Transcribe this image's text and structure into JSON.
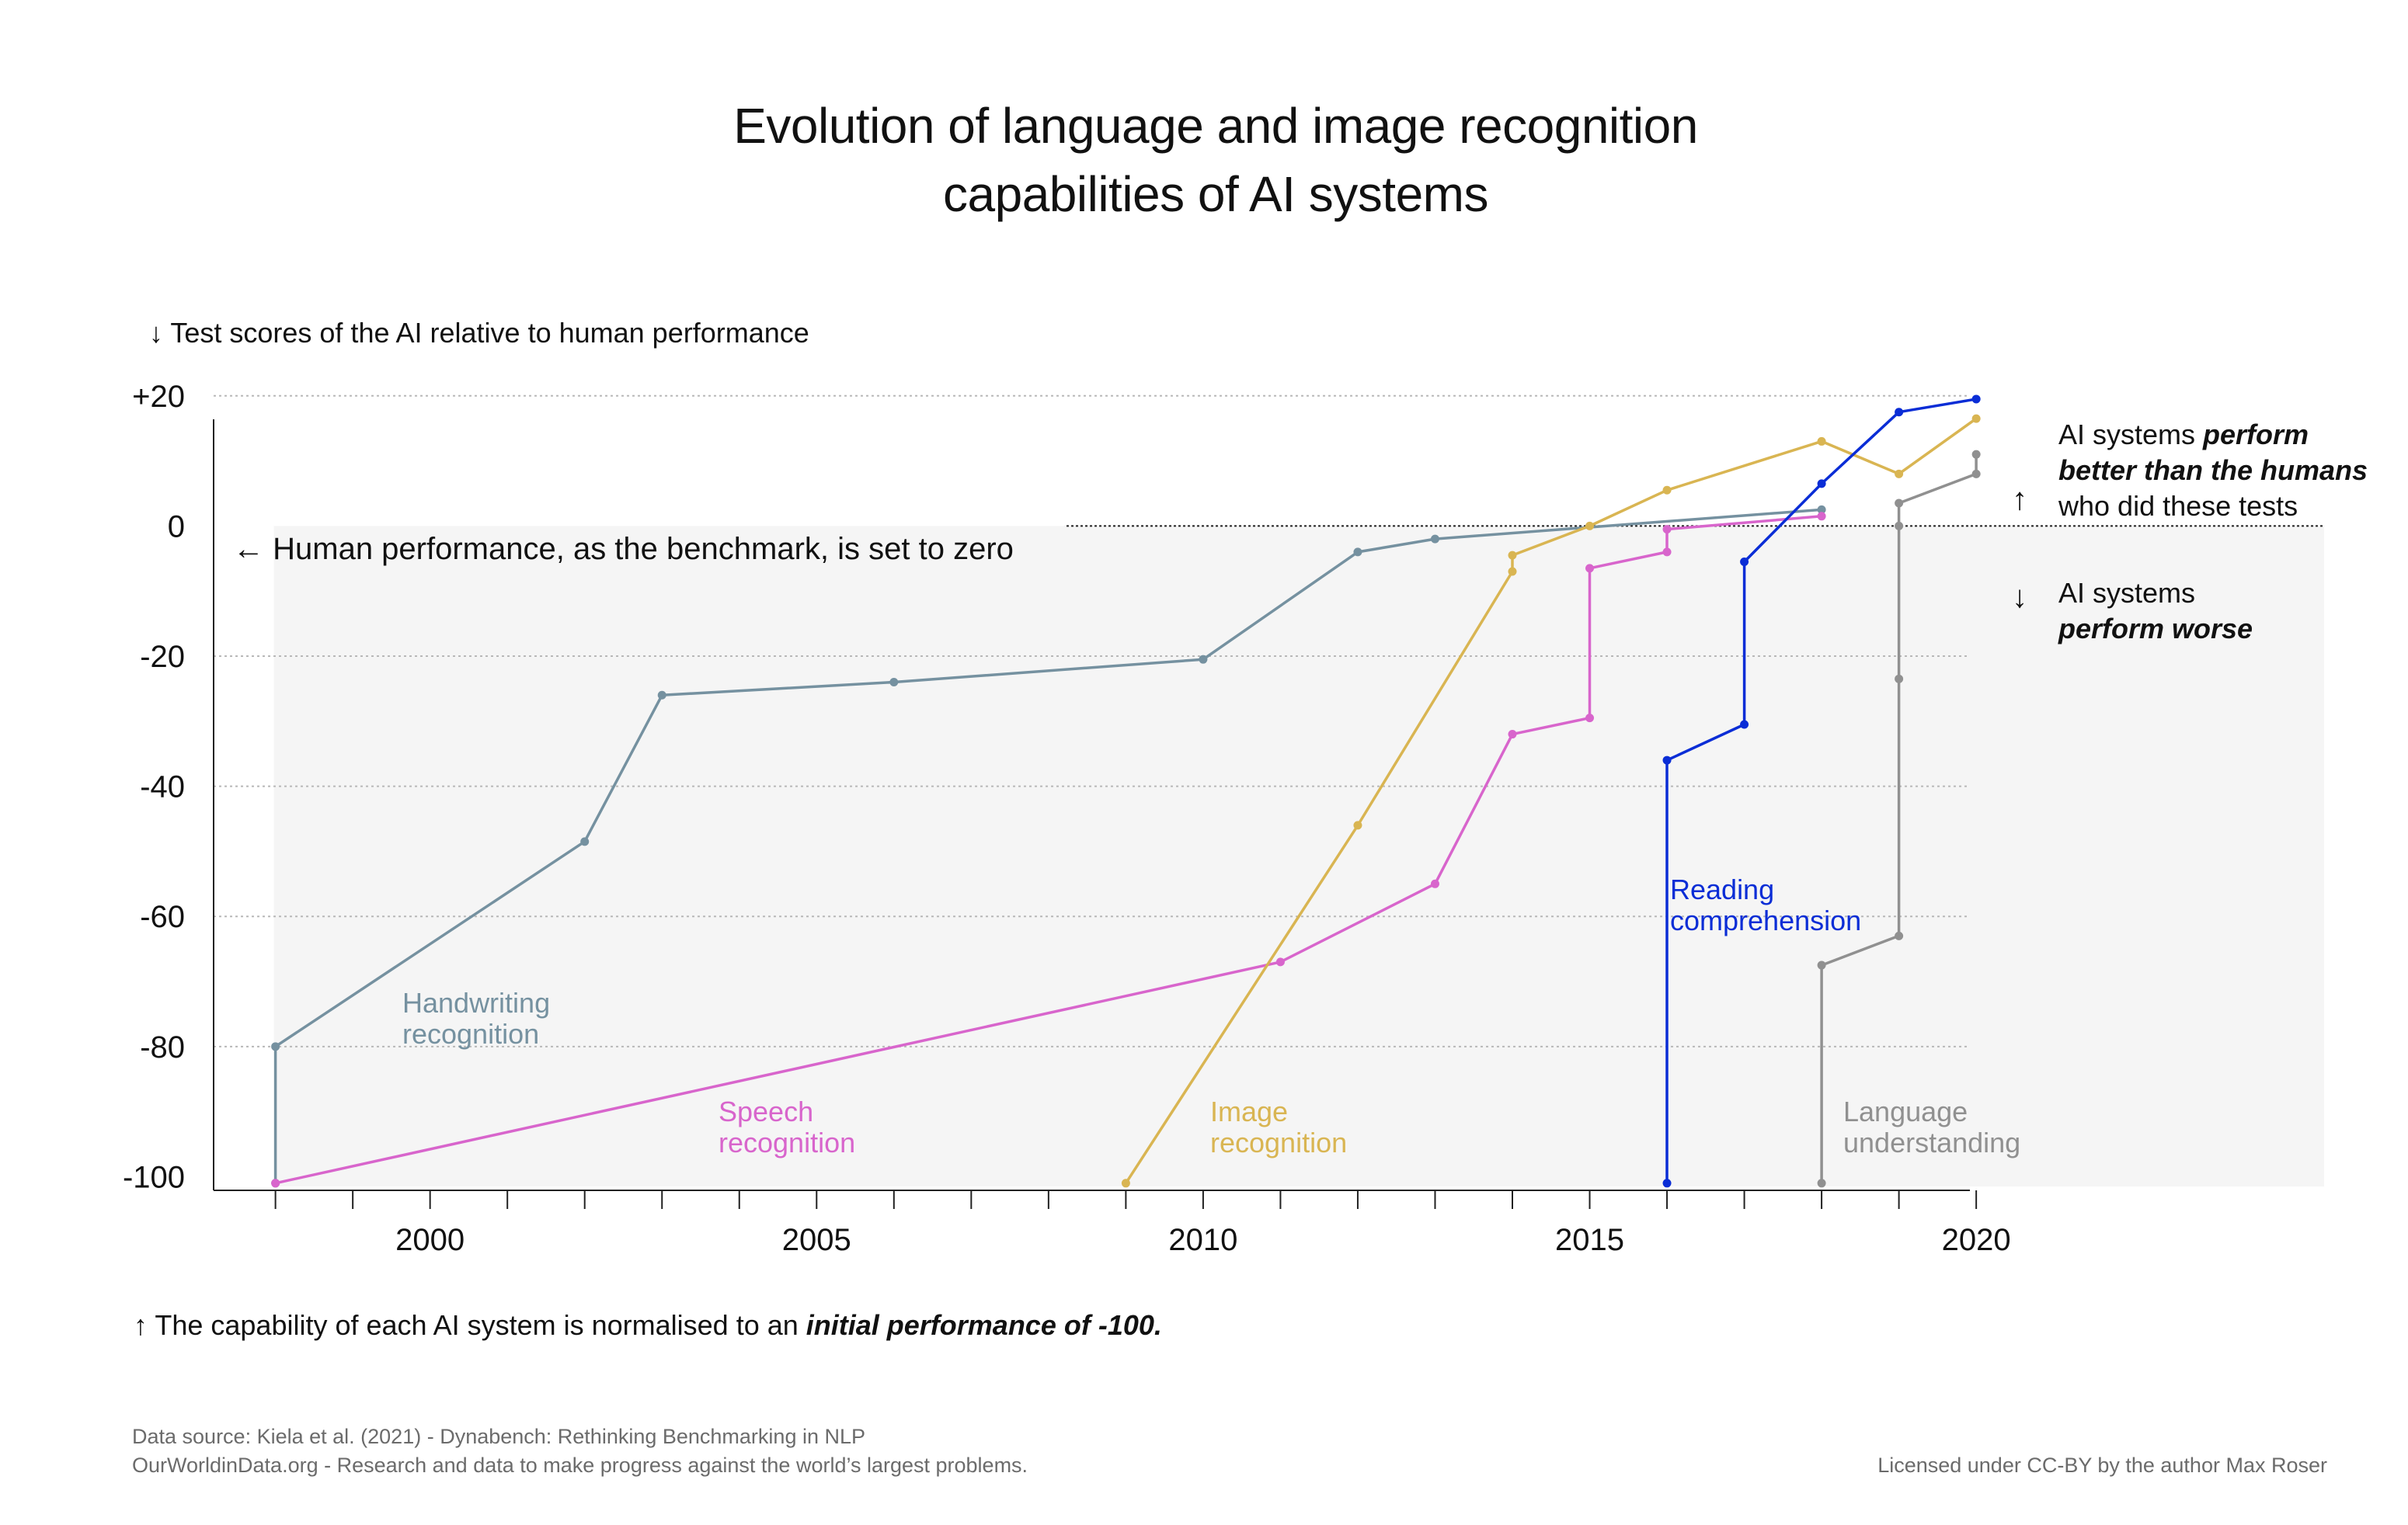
{
  "title_line1": "Evolution of language and image recognition",
  "title_line2": "capabilities of AI systems",
  "y_axis_note": "↓ Test scores of the AI relative to human performance",
  "bottom_note_prefix": "↑ The capability of each AI system is normalised to an ",
  "bottom_note_emphasis": "initial performance of -100.",
  "benchmark_note": "← Human performance, as the benchmark, is set to zero",
  "better": {
    "arrow": "↑",
    "plain1": "AI systems ",
    "bold1": "perform",
    "bold2": "better than the humans",
    "plain2": "who did these tests"
  },
  "worse": {
    "arrow": "↓",
    "plain1": "AI systems",
    "bold1": "perform worse"
  },
  "footer": {
    "source": "Data source: Kiela et al. (2021) - Dynabench: Rethinking Benchmarking in NLP",
    "owid": "OurWorldinData.org - Research and data to make progress against the world’s largest problems.",
    "license": "Licensed under CC-BY by the author Max Roser"
  },
  "colors": {
    "handwriting": "#7591a0",
    "speech": "#d865cc",
    "image": "#d9b552",
    "reading": "#0a2dd6",
    "language": "#909090",
    "shade": "#f5f5f5",
    "grid": "#b8b8b8"
  },
  "chart_data": {
    "type": "line",
    "xlim": [
      1997.2,
      2024.5
    ],
    "ylim": [
      -101.5,
      22
    ],
    "x_ticks": [
      2000,
      2005,
      2010,
      2015,
      2020
    ],
    "y_ticks": [
      20,
      0,
      -20,
      -40,
      -60,
      -80,
      -100
    ],
    "y_tick_labels": [
      "+20",
      "0",
      "-20",
      "-40",
      "-60",
      "-80",
      "-100"
    ],
    "grid": true,
    "shade_below_zero": true,
    "series": [
      {
        "name": "Handwriting recognition",
        "key": "handwriting",
        "label_lines": [
          "Handwriting",
          "recognition"
        ],
        "x": [
          1998,
          1998,
          2002,
          2003,
          2006,
          2010,
          2012,
          2013,
          2018
        ],
        "y": [
          -101,
          -80,
          -48.5,
          -26,
          -24,
          -20.5,
          -4,
          -2,
          2.5
        ]
      },
      {
        "name": "Speech recognition",
        "key": "speech",
        "label_lines": [
          "Speech",
          "recognition"
        ],
        "x": [
          1998,
          2011,
          2013,
          2014,
          2015,
          2015,
          2016,
          2016,
          2018
        ],
        "y": [
          -101,
          -67,
          -55,
          -32,
          -29.5,
          -6.5,
          -4,
          -0.5,
          1.5
        ]
      },
      {
        "name": "Image recognition",
        "key": "image",
        "label_lines": [
          "Image",
          "recognition"
        ],
        "x": [
          2009,
          2012,
          2014,
          2014,
          2015,
          2016,
          2018,
          2019,
          2020
        ],
        "y": [
          -101,
          -46,
          -7,
          -4.5,
          0,
          5.5,
          13,
          8,
          16.5
        ]
      },
      {
        "name": "Reading comprehension",
        "key": "reading",
        "label_lines": [
          "Reading",
          "comprehension"
        ],
        "x": [
          2016,
          2016,
          2017,
          2017,
          2018,
          2019,
          2020
        ],
        "y": [
          -101,
          -36,
          -30.5,
          -5.5,
          6.5,
          17.5,
          19.5
        ]
      },
      {
        "name": "Language understanding",
        "key": "language",
        "label_lines": [
          "Language",
          "understanding"
        ],
        "x": [
          2018,
          2018,
          2019,
          2019,
          2019,
          2019,
          2020,
          2020
        ],
        "y": [
          -101,
          -67.5,
          -63,
          -23.5,
          0,
          3.5,
          8,
          11
        ]
      }
    ]
  }
}
